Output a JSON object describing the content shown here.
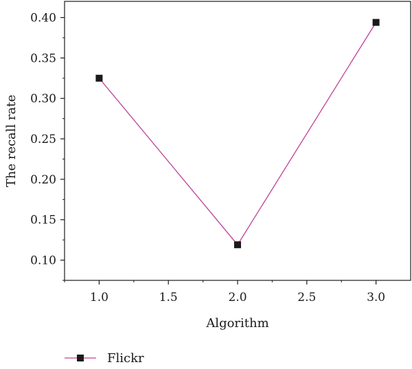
{
  "chart_data": {
    "type": "line",
    "xlabel": "Algorithm",
    "ylabel": "The recall rate",
    "xlim": [
      0.75,
      3.25
    ],
    "ylim": [
      0.075,
      0.42
    ],
    "x_ticks": [
      1.0,
      1.5,
      2.0,
      2.5,
      3.0
    ],
    "x_tick_labels": [
      "1.0",
      "1.5",
      "2.0",
      "2.5",
      "3.0"
    ],
    "y_ticks": [
      0.1,
      0.15,
      0.2,
      0.25,
      0.3,
      0.35,
      0.4
    ],
    "y_tick_labels": [
      "0.10",
      "0.15",
      "0.20",
      "0.25",
      "0.30",
      "0.35",
      "0.40"
    ],
    "grid": false,
    "legend_position": "bottom-left",
    "series": [
      {
        "name": "Flickr",
        "x": [
          1.0,
          2.0,
          3.0
        ],
        "y": [
          0.325,
          0.119,
          0.394
        ],
        "line_color": "#c0409a",
        "marker": "square",
        "marker_color": "#1a1a1a"
      }
    ]
  }
}
